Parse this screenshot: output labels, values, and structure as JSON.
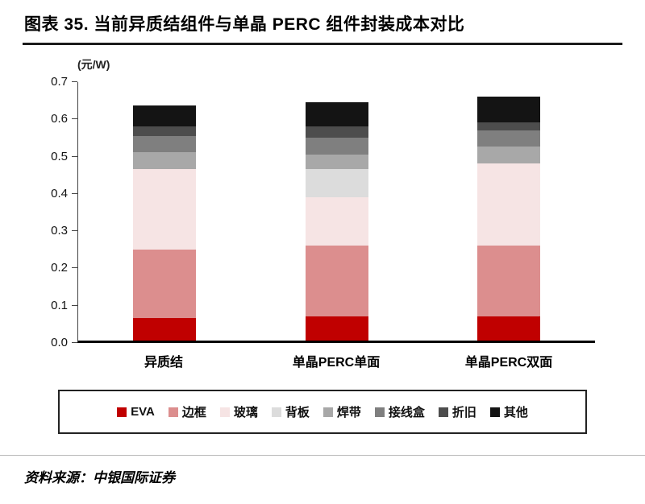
{
  "header": {
    "title": "图表 35. 当前异质结组件与单晶 PERC 组件封装成本对比"
  },
  "chart_data": {
    "type": "bar",
    "stacked": true,
    "title": "当前异质结组件与单晶 PERC 组件封装成本对比",
    "unit": "(元/W)",
    "ylabel": "元/W",
    "xlabel": "",
    "ylim": [
      0,
      0.7
    ],
    "yticks": [
      "0.0",
      "0.1",
      "0.2",
      "0.3",
      "0.4",
      "0.5",
      "0.6",
      "0.7"
    ],
    "grid": false,
    "legend_position": "bottom",
    "categories": [
      "异质结",
      "单晶PERC单面",
      "单晶PERC双面"
    ],
    "series": [
      {
        "name": "EVA",
        "color": "#c00000",
        "values": [
          0.06,
          0.065,
          0.065
        ]
      },
      {
        "name": "边框",
        "color": "#dc8e8e",
        "values": [
          0.185,
          0.19,
          0.19
        ]
      },
      {
        "name": "玻璃",
        "color": "#f6e4e4",
        "values": [
          0.215,
          0.13,
          0.22
        ]
      },
      {
        "name": "背板",
        "color": "#dcdcdc",
        "values": [
          0.0,
          0.075,
          0.0
        ]
      },
      {
        "name": "焊带",
        "color": "#a8a8a8",
        "values": [
          0.045,
          0.04,
          0.045
        ]
      },
      {
        "name": "接线盒",
        "color": "#7f7f7f",
        "values": [
          0.045,
          0.045,
          0.045
        ]
      },
      {
        "name": "折旧",
        "color": "#4d4d4d",
        "values": [
          0.025,
          0.03,
          0.02
        ]
      },
      {
        "name": "其他",
        "color": "#141414",
        "values": [
          0.055,
          0.065,
          0.07
        ]
      }
    ],
    "totals": [
      0.63,
      0.64,
      0.655
    ]
  },
  "footer": {
    "source": "资料来源：中银国际证券"
  }
}
